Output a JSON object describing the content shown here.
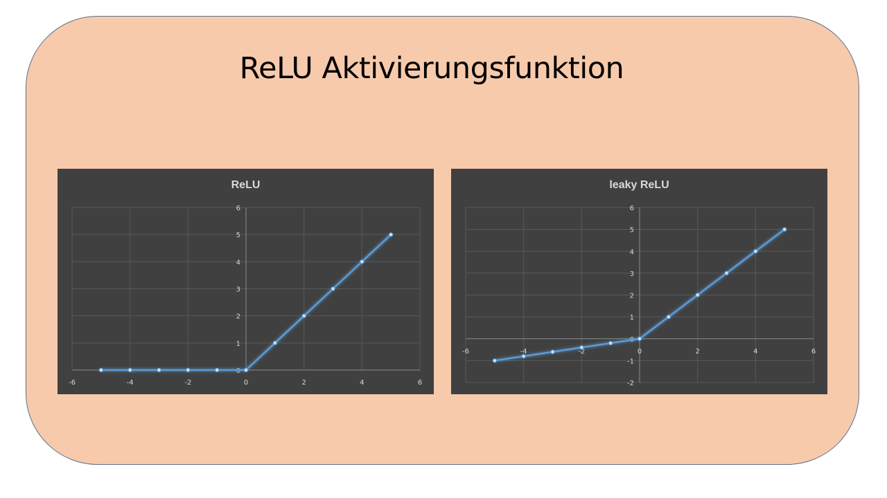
{
  "slide": {
    "title": "ReLU Aktivierungsfunktion"
  },
  "colors": {
    "slide_background": "#f7caac",
    "slide_border": "#5b6f86",
    "chart_background": "#404040",
    "gridline": "#595959",
    "axis_line": "#8c8c8c",
    "text": "#d9d9d9",
    "series_line": "#5b9bd5"
  },
  "chart_data": [
    {
      "type": "scatter",
      "title": "ReLU",
      "xlim": [
        -6,
        6
      ],
      "ylim": [
        0,
        6
      ],
      "x_ticks": [
        -6,
        -4,
        -2,
        0,
        2,
        4,
        6
      ],
      "y_ticks": [
        0,
        1,
        2,
        3,
        4,
        5,
        6
      ],
      "grid": true,
      "legend": "none",
      "series": [
        {
          "x": [
            -5,
            -4,
            -3,
            -2,
            -1,
            0,
            1,
            2,
            3,
            4,
            5
          ],
          "y": [
            0,
            0,
            0,
            0,
            0,
            0,
            1,
            2,
            3,
            4,
            5
          ]
        }
      ]
    },
    {
      "type": "scatter",
      "title": "leaky ReLU",
      "xlim": [
        -6,
        6
      ],
      "ylim": [
        -2,
        6
      ],
      "x_ticks": [
        -6,
        -4,
        -2,
        0,
        2,
        4,
        6
      ],
      "y_ticks": [
        -2,
        -1,
        0,
        1,
        2,
        3,
        4,
        5,
        6
      ],
      "grid": true,
      "legend": "none",
      "series": [
        {
          "x": [
            -5,
            -4,
            -3,
            -2,
            -1,
            0,
            1,
            2,
            3,
            4,
            5
          ],
          "y": [
            -1,
            -0.8,
            -0.6,
            -0.4,
            -0.2,
            0,
            1,
            2,
            3,
            4,
            5
          ]
        }
      ]
    }
  ]
}
